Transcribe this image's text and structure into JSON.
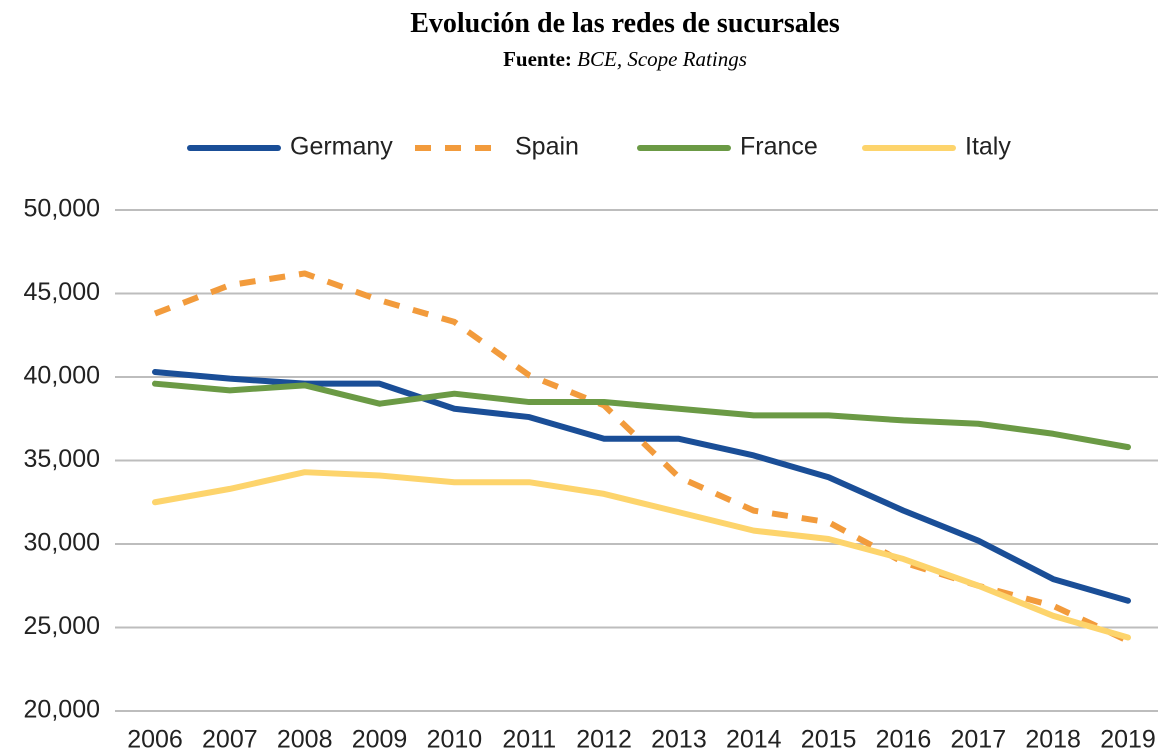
{
  "chart_data": {
    "type": "line",
    "title": "Evolución de las redes de sucursales",
    "source_label": "Fuente:",
    "source": "BCE, Scope Ratings",
    "categories": [
      "2006",
      "2007",
      "2008",
      "2009",
      "2010",
      "2011",
      "2012",
      "2013",
      "2014",
      "2015",
      "2016",
      "2017",
      "2018",
      "2019"
    ],
    "series": [
      {
        "name": "Germany",
        "color": "#1a4e97",
        "dashed": false,
        "values": [
          40300,
          39900,
          39600,
          39600,
          38100,
          37600,
          36300,
          36300,
          35300,
          34000,
          32000,
          30200,
          27900,
          26600
        ]
      },
      {
        "name": "Spain",
        "color": "#f29b3c",
        "dashed": true,
        "values": [
          43800,
          45500,
          46200,
          44600,
          43300,
          40100,
          38300,
          34000,
          32000,
          31300,
          28900,
          27500,
          26300,
          24200
        ]
      },
      {
        "name": "France",
        "color": "#6b9a45",
        "dashed": false,
        "values": [
          39600,
          39200,
          39500,
          38400,
          39000,
          38500,
          38500,
          38100,
          37700,
          37700,
          37400,
          37200,
          36600,
          35800
        ]
      },
      {
        "name": "Italy",
        "color": "#fdd46c",
        "dashed": false,
        "values": [
          32500,
          33300,
          34300,
          34100,
          33700,
          33700,
          33000,
          31900,
          30800,
          30300,
          29100,
          27500,
          25700,
          24400
        ]
      }
    ],
    "ylim": [
      20000,
      50000
    ],
    "yticks": [
      {
        "value": 20000,
        "label": "20,000"
      },
      {
        "value": 25000,
        "label": "25,000"
      },
      {
        "value": 30000,
        "label": "30,000"
      },
      {
        "value": 35000,
        "label": "35,000"
      },
      {
        "value": 40000,
        "label": "40,000"
      },
      {
        "value": 45000,
        "label": "45,000"
      },
      {
        "value": 50000,
        "label": "50,000"
      }
    ],
    "grid": true,
    "legend": "top"
  }
}
